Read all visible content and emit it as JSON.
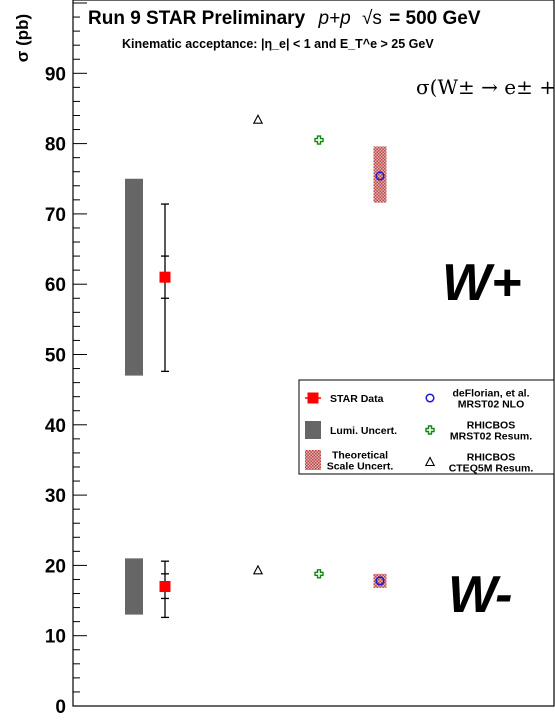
{
  "chart_data": {
    "type": "scatter",
    "title": "Run 9 STAR Preliminary",
    "title_collision": "p+p",
    "title_energy_symbol": "√s",
    "title_energy": "= 500 GeV",
    "subtitle": "Kinematic acceptance: |η_e| < 1 and E_T^e > 25 GeV",
    "process_label": "σ(W± → e± + ν_e)",
    "ylabel": "σ (pb)",
    "ylim": [
      0,
      100
    ],
    "yticks": [
      0,
      10,
      20,
      30,
      40,
      50,
      60,
      70,
      80,
      90
    ],
    "grid": false,
    "legend_position": "right",
    "groups": [
      {
        "label": "W+",
        "star_data": {
          "value": 61.0,
          "stat_err": [
            58.0,
            64.0
          ],
          "total_err": [
            47.6,
            71.4
          ]
        },
        "lumi_band": [
          47.0,
          75.0
        ],
        "theory_defl_mrst02_nlo": {
          "value": 75.4,
          "scale_band": [
            71.6,
            79.6
          ]
        },
        "theory_rhicbos_mrst02": 80.5,
        "theory_rhicbos_cteq5m": 83.4
      },
      {
        "label": "W-",
        "star_data": {
          "value": 17.0,
          "stat_err": [
            15.3,
            18.8
          ],
          "total_err": [
            12.6,
            20.6
          ]
        },
        "lumi_band": [
          13.0,
          21.0
        ],
        "theory_defl_mrst02_nlo": {
          "value": 17.8,
          "scale_band": [
            16.8,
            18.8
          ]
        },
        "theory_rhicbos_mrst02": 18.8,
        "theory_rhicbos_cteq5m": 19.3
      }
    ],
    "legend": [
      {
        "key": "star",
        "text": [
          "STAR Data"
        ]
      },
      {
        "key": "lumi",
        "text": [
          "Lumi. Uncert."
        ]
      },
      {
        "key": "scale",
        "text": [
          "Theoretical",
          "Scale Uncert."
        ]
      },
      {
        "key": "defl",
        "text": [
          "deFlorian, et al.",
          "MRST02 NLO"
        ]
      },
      {
        "key": "rhic_mrst",
        "text": [
          "RHICBOS",
          "MRST02 Resum."
        ]
      },
      {
        "key": "rhic_cteq",
        "text": [
          "RHICBOS",
          "CTEQ5M Resum."
        ]
      }
    ],
    "colors": {
      "star": "#ff0000",
      "lumi": "#666666",
      "scale": "#cc5555",
      "defl": "#1a1acc",
      "rhic_mrst": "#118811",
      "rhic_cteq": "#000000"
    }
  }
}
